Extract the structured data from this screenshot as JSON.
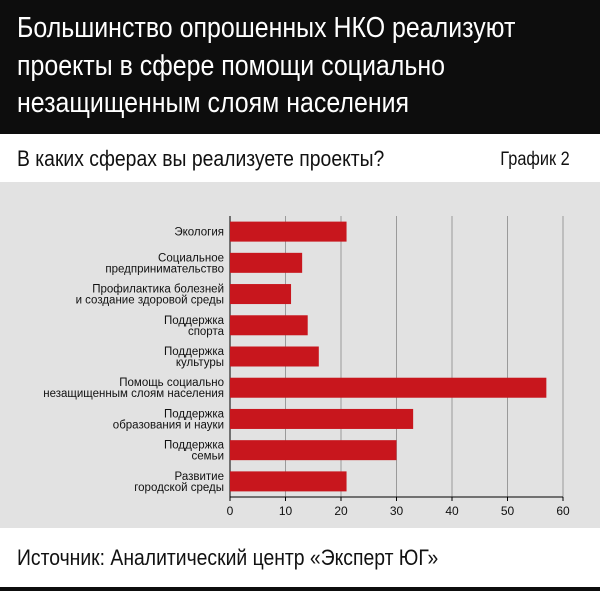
{
  "header": {
    "title_lines": [
      "Большинство опрошенных НКО реализуют",
      "проекты в сфере помощи социально",
      "незащищенным слоям населения"
    ]
  },
  "question": "В каких сферах вы реализуете проекты?",
  "graph_label": "График 2",
  "source": "Источник: Аналитический центр «Эксперт ЮГ»",
  "colors": {
    "bar": "#c8161d",
    "header_bg": "#0d0d0d",
    "panel_bg": "#e2e2e2"
  },
  "chart_data": {
    "type": "bar",
    "orientation": "horizontal",
    "title": "",
    "xlabel": "",
    "ylabel": "",
    "categories": [
      [
        "Экология"
      ],
      [
        "Социальное",
        "предпринимательство"
      ],
      [
        "Профилактика болезней",
        "и создание здоровой среды"
      ],
      [
        "Поддержка",
        "спорта"
      ],
      [
        "Поддержка",
        "культуры"
      ],
      [
        "Помощь социально",
        "незащищенным слоям населения"
      ],
      [
        "Поддержка",
        "образования и науки"
      ],
      [
        "Поддержка",
        "семьи"
      ],
      [
        "Развитие",
        "городской среды"
      ]
    ],
    "values": [
      21,
      13,
      11,
      14,
      16,
      57,
      33,
      30,
      21
    ],
    "xlim": [
      0,
      60
    ],
    "xticks": [
      0,
      10,
      20,
      30,
      40,
      50,
      60
    ],
    "grid": "vertical"
  }
}
